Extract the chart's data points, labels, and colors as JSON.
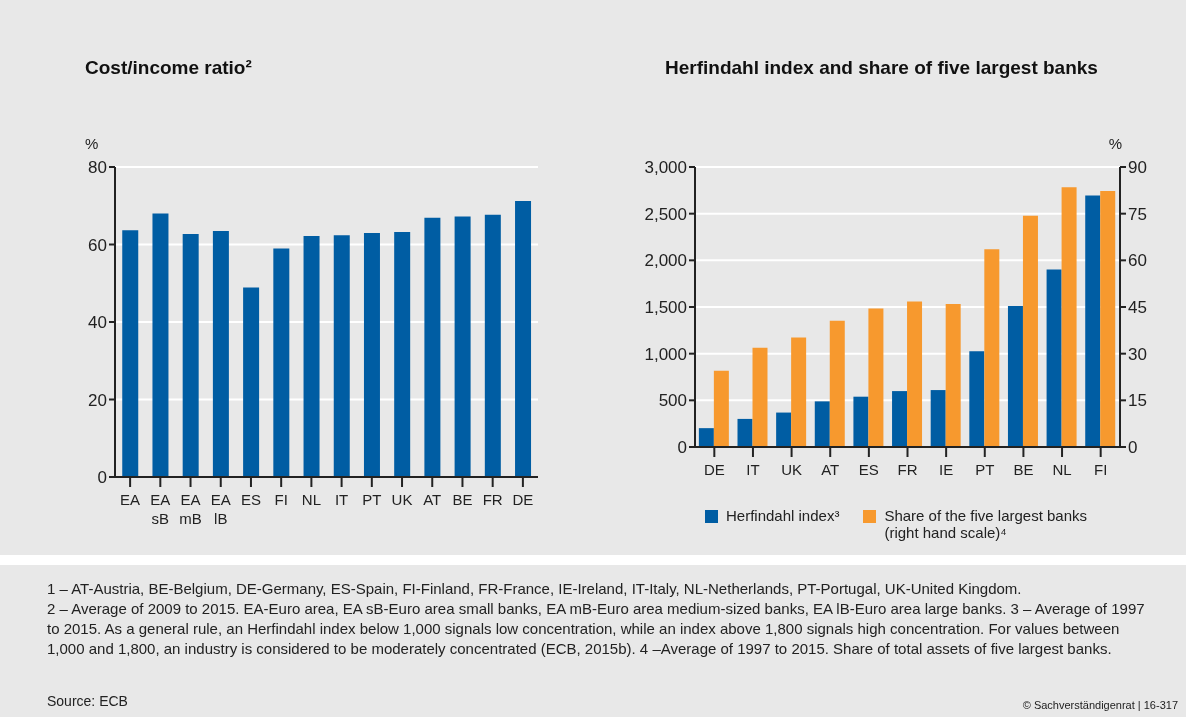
{
  "chart_data": [
    {
      "type": "bar",
      "title": "Cost/income ratio²",
      "ylabel": "%",
      "categories": [
        "EA",
        "EA sB",
        "EA mB",
        "EA lB",
        "ES",
        "FI",
        "NL",
        "IT",
        "PT",
        "UK",
        "AT",
        "BE",
        "FR",
        "DE"
      ],
      "values": [
        63.7,
        68.0,
        62.7,
        63.5,
        48.9,
        59.0,
        62.2,
        62.4,
        63.0,
        63.2,
        66.9,
        67.2,
        67.7,
        71.2
      ],
      "color": "#005da3",
      "ylim": [
        0,
        80
      ],
      "yticks": [
        0,
        20,
        40,
        60,
        80
      ],
      "grid": "y",
      "legend": false
    },
    {
      "type": "bar",
      "title": "Herfindahl index and share of five largest banks",
      "y2label": "%",
      "categories": [
        "DE",
        "IT",
        "UK",
        "AT",
        "ES",
        "FR",
        "IE",
        "PT",
        "BE",
        "NL",
        "FI"
      ],
      "series": [
        {
          "name": "Herfindahl index³",
          "color": "#005da3",
          "values": [
            202,
            301,
            369,
            489,
            539,
            599,
            610,
            1025,
            1511,
            1901,
            2695
          ]
        },
        {
          "name": "Share of the five largest banks (right hand scale)⁴",
          "color": "#f7992e",
          "axis": "y2",
          "values": [
            24.5,
            31.9,
            35.2,
            40.6,
            44.5,
            46.8,
            46.0,
            63.6,
            74.3,
            83.5,
            82.3
          ]
        }
      ],
      "ylim": [
        0,
        3000
      ],
      "yticks": [
        0,
        {
          "value": 500,
          "label": "500"
        },
        {
          "value": 1000,
          "label": "1,000"
        },
        {
          "value": 1500,
          "label": "1,500"
        },
        {
          "value": 2000,
          "label": "2,000"
        },
        {
          "value": 2500,
          "label": "2,500"
        },
        {
          "value": 3000,
          "label": "3,000"
        }
      ],
      "y2lim": [
        0,
        90
      ],
      "y2ticks": [
        0,
        15,
        30,
        45,
        60,
        75,
        90
      ],
      "grid": "y",
      "legend": "bottom",
      "annotations": [
        "1 – AT-Austria, BE-Belgium, DE-Germany, ES-Spain, FI-Finland, FR-France, IE-Ireland, IT-Italy, NL-Netherlands, PT-Portugal, UK-United Kingdom.",
        "2 – Average of 2009 to 2015. EA-Euro area, EA sB-Euro area small banks, EA mB-Euro area medium-sized banks, EA lB-Euro area large banks.  3 – Average of 1997 to 2015. As a general rule, an Herfindahl index below 1,000 signals low concentration, while an index above 1,800 signals high concentration. For values between 1,000 and 1,800, an industry is considered to be moderately concentrated (ECB, 2015b).  4 –Average of 1997 to 2015. Share of total assets of five largest banks.",
        "Source: ECB",
        "© Sachverständigenrat | 16-317"
      ]
    }
  ]
}
